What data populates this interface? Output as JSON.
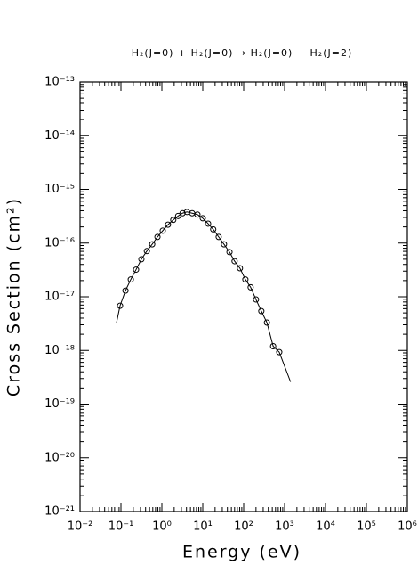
{
  "chart_data": {
    "type": "line",
    "title": "H₂(J=0) + H₂(J=0) → H₂(J=0) + H₂(J=2)",
    "xlabel": "Energy (eV)",
    "ylabel": "Cross Section (cm²)",
    "xscale": "log",
    "yscale": "log",
    "xlim": [
      0.01,
      1000000
    ],
    "ylim": [
      1e-21,
      1e-13
    ],
    "xticks": [
      {
        "value": 0.01,
        "label": "10⁻²"
      },
      {
        "value": 0.1,
        "label": "10⁻¹"
      },
      {
        "value": 1,
        "label": "10⁰"
      },
      {
        "value": 10,
        "label": "10¹"
      },
      {
        "value": 100,
        "label": "10²"
      },
      {
        "value": 1000,
        "label": "10³"
      },
      {
        "value": 10000,
        "label": "10⁴"
      },
      {
        "value": 100000,
        "label": "10⁵"
      },
      {
        "value": 1000000,
        "label": "10⁶"
      }
    ],
    "yticks": [
      {
        "value": 1e-21,
        "label": "10⁻²¹"
      },
      {
        "value": 1e-20,
        "label": "10⁻²⁰"
      },
      {
        "value": 1e-19,
        "label": "10⁻¹⁹"
      },
      {
        "value": 1e-18,
        "label": "10⁻¹⁸"
      },
      {
        "value": 1e-17,
        "label": "10⁻¹⁷"
      },
      {
        "value": 1e-16,
        "label": "10⁻¹⁶"
      },
      {
        "value": 1e-15,
        "label": "10⁻¹⁵"
      },
      {
        "value": 1e-14,
        "label": "10⁻¹⁴"
      },
      {
        "value": 1e-13,
        "label": "10⁻¹³"
      }
    ],
    "series": [
      {
        "color": "#000000",
        "marker": "none",
        "x": [
          0.078,
          0.095,
          0.129,
          0.174,
          0.234,
          0.316,
          0.43,
          0.58,
          0.78,
          1.05,
          1.41,
          1.9,
          2.5,
          3.2,
          4.1,
          5.5,
          7.4,
          10,
          13.5,
          18,
          24.5,
          33,
          45,
          60,
          81,
          110,
          148,
          200,
          270,
          370,
          525,
          740,
          1400
        ],
        "values": [
          3.3e-18,
          6.8e-18,
          1.3e-17,
          2.1e-17,
          3.2e-17,
          5e-17,
          7.1e-17,
          9.5e-17,
          1.3e-16,
          1.7e-16,
          2.2e-16,
          2.7e-16,
          3.2e-16,
          3.6e-16,
          3.8e-16,
          3.6e-16,
          3.4e-16,
          2.9e-16,
          2.3e-16,
          1.8e-16,
          1.3e-16,
          9.5e-17,
          6.8e-17,
          4.6e-17,
          3.4e-17,
          2.1e-17,
          1.5e-17,
          8.9e-18,
          5.4e-18,
          3.3e-18,
          1.2e-18,
          9.3e-19,
          2.6e-19
        ]
      },
      {
        "color": "#000000",
        "marker": "circle",
        "x": [
          0.095,
          0.129,
          0.174,
          0.234,
          0.316,
          0.43,
          0.58,
          0.78,
          1.05,
          1.41,
          1.9,
          2.5,
          3.2,
          4.1,
          5.5,
          7.4,
          10,
          13.5,
          18,
          24.5,
          33,
          45,
          60,
          81,
          110,
          148,
          200,
          270,
          370,
          525,
          740
        ],
        "values": [
          6.8e-18,
          1.3e-17,
          2.1e-17,
          3.2e-17,
          5e-17,
          7.1e-17,
          9.5e-17,
          1.3e-16,
          1.7e-16,
          2.2e-16,
          2.7e-16,
          3.2e-16,
          3.6e-16,
          3.8e-16,
          3.6e-16,
          3.4e-16,
          2.9e-16,
          2.3e-16,
          1.8e-16,
          1.3e-16,
          9.5e-17,
          6.8e-17,
          4.6e-17,
          3.4e-17,
          2.1e-17,
          1.5e-17,
          8.9e-18,
          5.4e-18,
          3.3e-18,
          1.2e-18,
          9.3e-19
        ]
      }
    ]
  }
}
